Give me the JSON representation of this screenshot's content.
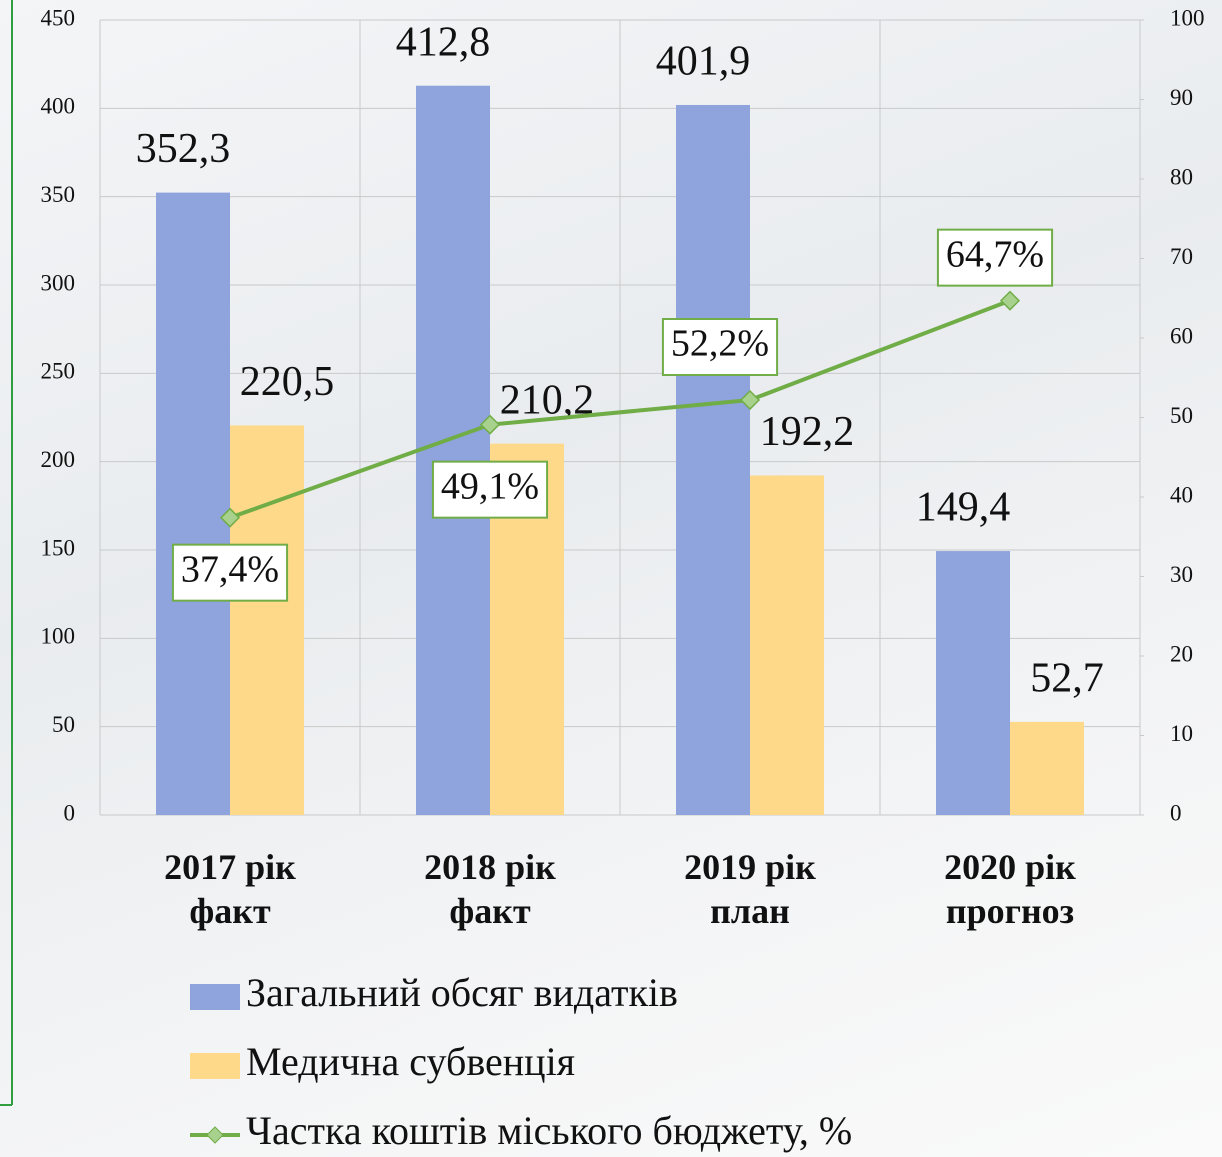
{
  "chart_data": {
    "type": "combo",
    "categories": [
      "2017 рік\nфакт",
      "2018 рік\nфакт",
      "2019 рік\nплан",
      "2020 рік\nпрогноз"
    ],
    "series": [
      {
        "name": "Загальний обсяг видатків",
        "type": "bar",
        "color": "#8fa3dc",
        "values": [
          352.3,
          412.8,
          401.9,
          149.4
        ],
        "value_labels": [
          "352,3",
          "412,8",
          "401,9",
          "149,4"
        ]
      },
      {
        "name": "Медична субвенція",
        "type": "bar",
        "color": "#ffd98a",
        "values": [
          220.5,
          210.2,
          192.2,
          52.7
        ],
        "value_labels": [
          "220,5",
          "210,2",
          "192,2",
          "52,7"
        ]
      },
      {
        "name": "Частка коштів міського бюджету, %",
        "type": "line",
        "axis": "y2",
        "color": "#70ad47",
        "values": [
          37.4,
          49.1,
          52.2,
          64.7
        ],
        "value_labels": [
          "37,4%",
          "49,1%",
          "52,2%",
          "64,7%"
        ]
      }
    ],
    "ylim": [
      0,
      450
    ],
    "yticks": [
      0,
      50,
      100,
      150,
      200,
      250,
      300,
      350,
      400,
      450
    ],
    "y2lim": [
      0,
      100
    ],
    "y2ticks": [
      0,
      10,
      20,
      30,
      40,
      50,
      60,
      70,
      80,
      90,
      100
    ],
    "grid": true
  }
}
